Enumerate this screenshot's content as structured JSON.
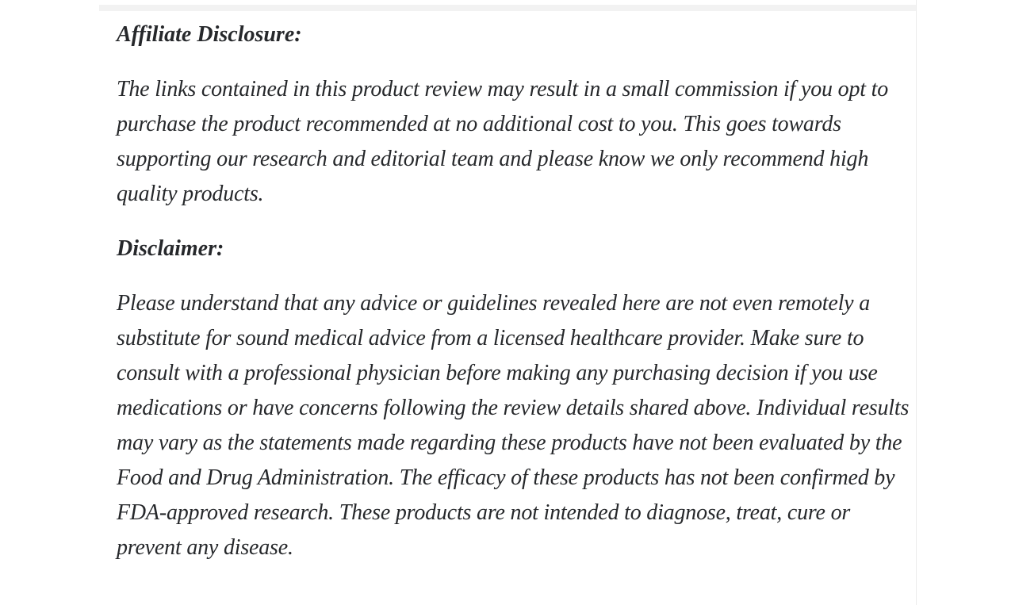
{
  "article": {
    "affiliate": {
      "heading": "Affiliate Disclosure:",
      "body": "The links contained in this product review may result in a small commission if you opt to purchase the product recommended at no additional cost to you. This goes towards supporting our research and editorial team and please know we only recommend high quality products."
    },
    "disclaimer": {
      "heading": "Disclaimer:",
      "body": "Please understand that any advice or guidelines revealed here are not even remotely a substitute for sound medical advice from a licensed healthcare provider. Make sure to consult with a professional physician before making any purchasing decision if you use medications or have concerns following the review details shared above. Individual results may vary as the statements made regarding these products have not been evaluated by the Food and Drug Administration. The efficacy of these products has not been confirmed by FDA-approved research. These products are not intended to diagnose, treat, cure or prevent any disease."
    },
    "colors": {
      "text": "#26282b",
      "top_strip": "#f2f2f2",
      "column_border": "#ececec",
      "background": "#ffffff"
    }
  }
}
